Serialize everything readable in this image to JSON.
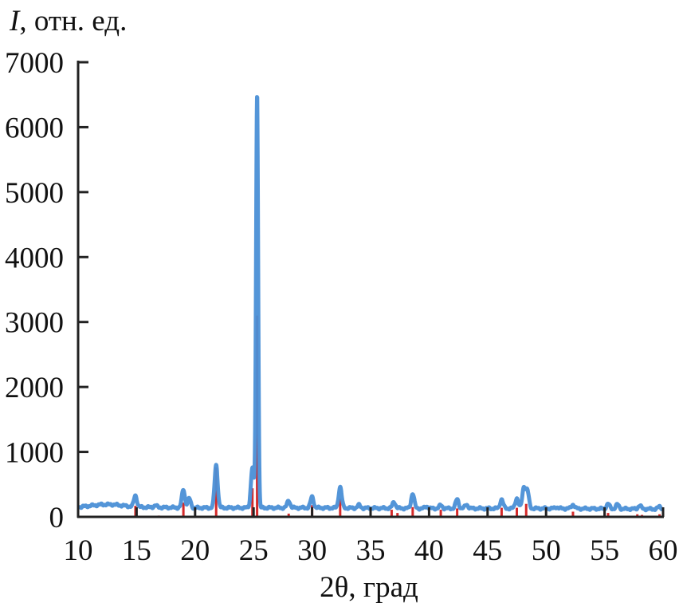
{
  "chart_data": {
    "type": "line",
    "ylabel_symbol": "I",
    "ylabel_rest": ", отн. ед.",
    "xlabel": "2θ, град",
    "xlim": [
      10,
      60
    ],
    "ylim": [
      0,
      7000
    ],
    "xticks": [
      10,
      15,
      20,
      25,
      30,
      35,
      40,
      45,
      50,
      55,
      60
    ],
    "yticks": [
      0,
      1000,
      2000,
      3000,
      4000,
      5000,
      6000,
      7000
    ],
    "grid": false,
    "colors": {
      "pattern": "#4a8fd6",
      "reference": "#d42a2a",
      "axis": "#222222"
    },
    "series": [
      {
        "kind": "measured-pattern",
        "baseline": [
          [
            10,
            150
          ],
          [
            12,
            190
          ],
          [
            13,
            190
          ],
          [
            15,
            150
          ],
          [
            20,
            140
          ],
          [
            30,
            140
          ],
          [
            40,
            130
          ],
          [
            50,
            130
          ],
          [
            60,
            120
          ]
        ],
        "peaks": [
          {
            "x": 14.9,
            "y": 330
          },
          {
            "x": 16.6,
            "y": 175
          },
          {
            "x": 19.0,
            "y": 420
          },
          {
            "x": 19.5,
            "y": 280
          },
          {
            "x": 21.8,
            "y": 800
          },
          {
            "x": 24.9,
            "y": 760
          },
          {
            "x": 25.3,
            "y": 6500
          },
          {
            "x": 28.0,
            "y": 250
          },
          {
            "x": 30.0,
            "y": 310
          },
          {
            "x": 32.4,
            "y": 460
          },
          {
            "x": 34.0,
            "y": 180
          },
          {
            "x": 37.0,
            "y": 230
          },
          {
            "x": 38.6,
            "y": 360
          },
          {
            "x": 39.8,
            "y": 160
          },
          {
            "x": 41.0,
            "y": 180
          },
          {
            "x": 42.4,
            "y": 270
          },
          {
            "x": 43.2,
            "y": 190
          },
          {
            "x": 46.2,
            "y": 270
          },
          {
            "x": 47.5,
            "y": 290
          },
          {
            "x": 48.1,
            "y": 450
          },
          {
            "x": 48.4,
            "y": 400
          },
          {
            "x": 50.9,
            "y": 150
          },
          {
            "x": 52.3,
            "y": 190
          },
          {
            "x": 55.3,
            "y": 200
          },
          {
            "x": 56.1,
            "y": 190
          },
          {
            "x": 58.0,
            "y": 175
          },
          {
            "x": 59.7,
            "y": 160
          }
        ]
      },
      {
        "kind": "reference-lines",
        "x": [
          14.9,
          16.9,
          19.0,
          21.8,
          24.9,
          25.3,
          28.0,
          30.0,
          32.4,
          36.8,
          37.3,
          38.6,
          41.0,
          42.4,
          46.2,
          47.5,
          48.3,
          52.3,
          55.3,
          57.8,
          58.2,
          59.7
        ],
        "y": [
          170,
          20,
          220,
          760,
          440,
          3100,
          50,
          180,
          280,
          110,
          60,
          150,
          110,
          130,
          140,
          140,
          200,
          80,
          60,
          40,
          30,
          40
        ]
      }
    ]
  }
}
